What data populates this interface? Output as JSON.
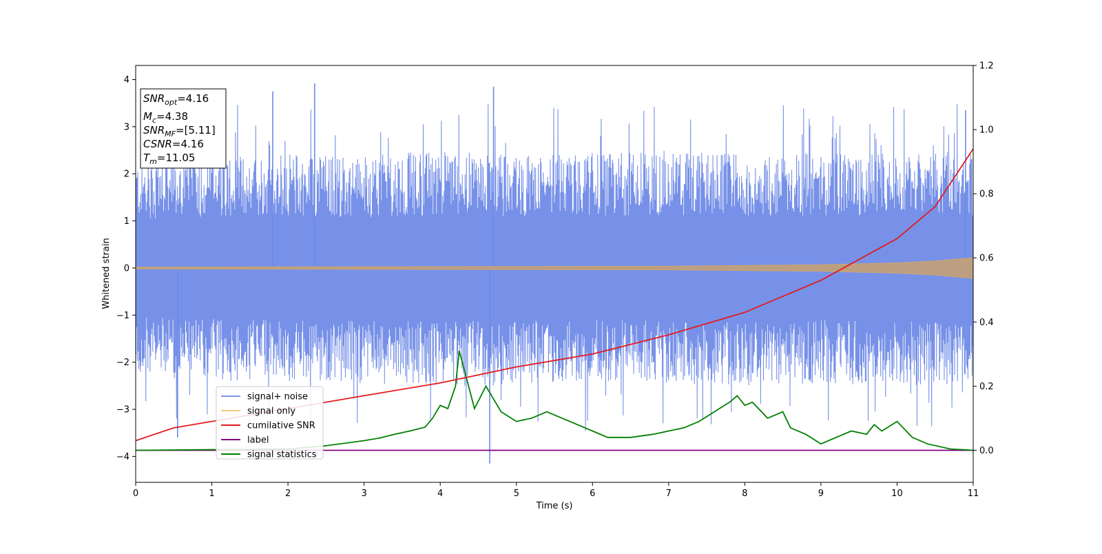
{
  "chart_data": {
    "type": "line",
    "xlabel": "Time (s)",
    "ylabel": "Whitened strain",
    "xlim": [
      0,
      11
    ],
    "ylim": [
      -4.55,
      4.3
    ],
    "y2lim": [
      -0.1,
      1.2
    ],
    "xticks": [
      "0",
      "1",
      "2",
      "3",
      "4",
      "5",
      "6",
      "7",
      "8",
      "9",
      "10",
      "11"
    ],
    "yticks": [
      "4",
      "3",
      "2",
      "1",
      "0",
      "−1",
      "−2",
      "−3",
      "−4"
    ],
    "y2ticks": [
      "1.2",
      "1.0",
      "0.8",
      "0.6",
      "0.4",
      "0.2",
      "0.0"
    ],
    "grid": false,
    "legend_placement": "lower-left",
    "info_box": [
      "SNR_opt=4.16",
      "M_c=4.38",
      "SNR_MF=[5.11]",
      "CSNR=4.16",
      "T_m=11.05"
    ],
    "info_parts": [
      {
        "base": "SNR",
        "sub": "opt",
        "value": "=4.16"
      },
      {
        "base": "M",
        "sub": "c",
        "value": "=4.38"
      },
      {
        "base": "SNR",
        "sub": "MF",
        "value": "=[5.11]"
      },
      {
        "base": "CSNR",
        "sub": "",
        "value": "=4.16"
      },
      {
        "base": "T",
        "sub": "m",
        "value": "=11.05"
      }
    ],
    "series": [
      {
        "name": "signal+ noise",
        "color": "#6b88e6",
        "axis": "left",
        "envelope_upper": [
          2.3,
          2.4,
          2.45,
          2.4,
          2.5,
          2.4,
          2.45,
          2.5,
          2.4,
          2.45,
          2.5,
          2.45
        ],
        "envelope_lower": [
          -2.3,
          -2.4,
          -2.4,
          -2.45,
          -2.5,
          -2.5,
          -2.4,
          -2.45,
          -2.5,
          -2.45,
          -2.5,
          -2.45
        ],
        "outliers": [
          [
            2.35,
            3.92
          ],
          [
            4.65,
            -4.15
          ],
          [
            4.7,
            3.85
          ],
          [
            1.8,
            3.75
          ],
          [
            10.9,
            3.35
          ],
          [
            0.55,
            -3.6
          ]
        ]
      },
      {
        "name": "signal only",
        "color": "#f5c36b",
        "axis": "left",
        "envelope": [
          [
            0,
            0.02
          ],
          [
            4,
            0.03
          ],
          [
            7,
            0.04
          ],
          [
            9,
            0.07
          ],
          [
            10,
            0.11
          ],
          [
            10.5,
            0.15
          ],
          [
            11,
            0.22
          ]
        ]
      },
      {
        "name": "cumilative SNR",
        "color": "#e41a1c",
        "axis": "right",
        "x": [
          0,
          0.5,
          1,
          2,
          3,
          4,
          5,
          6,
          7,
          8,
          9,
          10,
          10.5,
          11
        ],
        "values": [
          0.03,
          0.07,
          0.09,
          0.13,
          0.17,
          0.21,
          0.26,
          0.3,
          0.36,
          0.43,
          0.53,
          0.66,
          0.76,
          0.94
        ]
      },
      {
        "name": "label",
        "color": "#800080",
        "axis": "right",
        "x": [
          0,
          11
        ],
        "values": [
          0.0,
          0.0
        ]
      },
      {
        "name": "signal statistics",
        "color": "#008000",
        "axis": "right",
        "x": [
          0,
          2,
          2.5,
          3.0,
          3.2,
          3.4,
          3.6,
          3.8,
          3.9,
          4.0,
          4.1,
          4.2,
          4.25,
          4.35,
          4.45,
          4.6,
          4.65,
          4.8,
          5.0,
          5.2,
          5.4,
          5.6,
          5.8,
          6.0,
          6.2,
          6.5,
          6.8,
          7.0,
          7.2,
          7.4,
          7.6,
          7.8,
          7.9,
          8.0,
          8.1,
          8.3,
          8.5,
          8.6,
          8.8,
          9.0,
          9.2,
          9.4,
          9.6,
          9.7,
          9.8,
          10.0,
          10.2,
          10.4,
          10.7,
          11.0
        ],
        "values": [
          0.0,
          0.004,
          0.014,
          0.03,
          0.038,
          0.05,
          0.06,
          0.072,
          0.1,
          0.14,
          0.13,
          0.2,
          0.31,
          0.22,
          0.13,
          0.2,
          0.18,
          0.12,
          0.09,
          0.1,
          0.12,
          0.1,
          0.08,
          0.06,
          0.04,
          0.04,
          0.05,
          0.06,
          0.07,
          0.09,
          0.12,
          0.15,
          0.17,
          0.14,
          0.15,
          0.1,
          0.12,
          0.07,
          0.05,
          0.02,
          0.04,
          0.06,
          0.05,
          0.08,
          0.06,
          0.09,
          0.04,
          0.02,
          0.004,
          0.0
        ]
      }
    ]
  }
}
